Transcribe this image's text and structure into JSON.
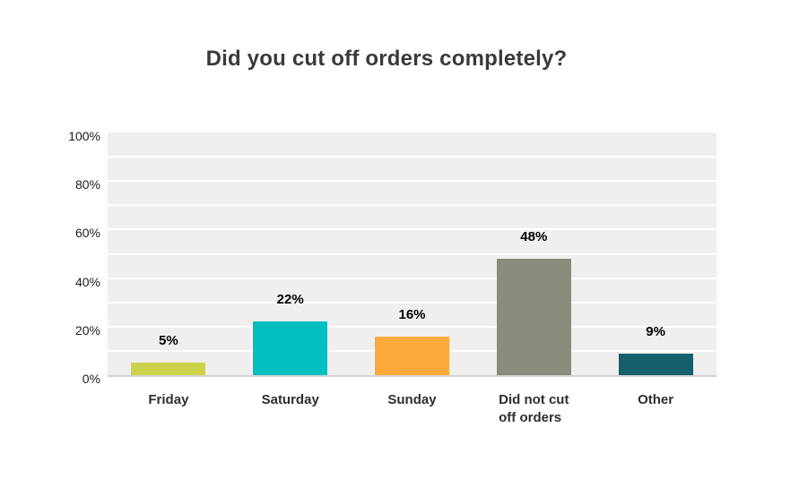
{
  "chart_data": {
    "type": "bar",
    "title": "Did you cut off orders completely?",
    "categories": [
      "Friday",
      "Saturday",
      "Sunday",
      "Did not cut off orders",
      "Other"
    ],
    "category_lines": [
      [
        "Friday"
      ],
      [
        "Saturday"
      ],
      [
        "Sunday"
      ],
      [
        "Did not cut",
        "off orders"
      ],
      [
        "Other"
      ]
    ],
    "values": [
      5,
      22,
      16,
      48,
      9
    ],
    "value_labels": [
      "5%",
      "22%",
      "16%",
      "48%",
      "9%"
    ],
    "bar_colors": [
      "#cbd14b",
      "#00bec1",
      "#fdaa3c",
      "#8a8c7d",
      "#155f6e"
    ],
    "xlabel": "",
    "ylabel": "",
    "ylim": [
      0,
      100
    ],
    "ytick_labels": [
      "0%",
      "20%",
      "40%",
      "60%",
      "80%",
      "100%"
    ],
    "ytick_values": [
      0,
      20,
      40,
      60,
      80,
      100
    ],
    "gridline_step": 10,
    "grid": true,
    "legend_position": "none",
    "colors": {
      "plot_background": "#f0efed",
      "gridline": "#ffffff",
      "axis_line": "#d2d2d2",
      "title_text": "#3a3a3a",
      "category_text": "#2e2e2e",
      "value_text": "#000000",
      "tick_text": "#1c1c1c",
      "page_background": "#ffffff"
    }
  }
}
